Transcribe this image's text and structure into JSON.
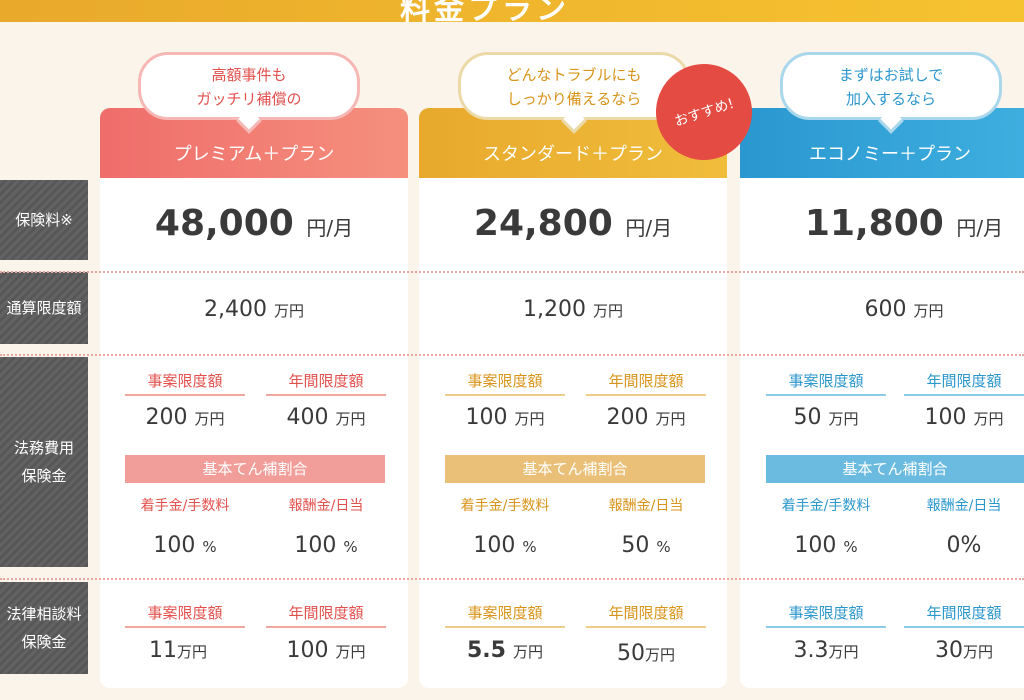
{
  "header": {
    "title": "料金プラン"
  },
  "row_labels": {
    "premium": "保険料※",
    "limit": "通算限度額",
    "legal_1": "法務費用",
    "legal_2": "保険金",
    "consult_1": "法律相談料",
    "consult_2": "保険金"
  },
  "colors": {
    "premium": "#ee6f6a",
    "standard": "#e9ad2d",
    "economy": "#2f9fd2",
    "badge": "#e44b43"
  },
  "badge": "おすすめ!",
  "labels": {
    "case_limit": "事案限度額",
    "annual_limit": "年間限度額",
    "basic_ratio": "基本てん補割合",
    "retainer": "着手金/手数料",
    "reward": "報酬金/日当"
  },
  "units": {
    "per_month": "円/月",
    "man_yen": "万円",
    "percent": "%"
  },
  "plans": [
    {
      "bubble_1": "高額事件も",
      "bubble_2": "ガッチリ補償の",
      "name": "プレミアム＋プラン",
      "price": "48,000",
      "total": "2,400",
      "legal_case": "200",
      "legal_annual": "400",
      "retainer": "100",
      "reward": "100",
      "consult_case": "11",
      "consult_annual": "100"
    },
    {
      "bubble_1": "どんなトラブルにも",
      "bubble_2": "しっかり備えるなら",
      "name": "スタンダード＋プラン",
      "price": "24,800",
      "total": "1,200",
      "legal_case": "100",
      "legal_annual": "200",
      "retainer": "100",
      "reward": "50",
      "consult_case": "5.5",
      "consult_annual": "50"
    },
    {
      "bubble_1": "まずはお試しで",
      "bubble_2": "加入するなら",
      "name": "エコノミー＋プラン",
      "price": "11,800",
      "total": "600",
      "legal_case": "50",
      "legal_annual": "100",
      "retainer": "100",
      "reward": "0",
      "consult_case": "3.3",
      "consult_annual": "30"
    }
  ]
}
